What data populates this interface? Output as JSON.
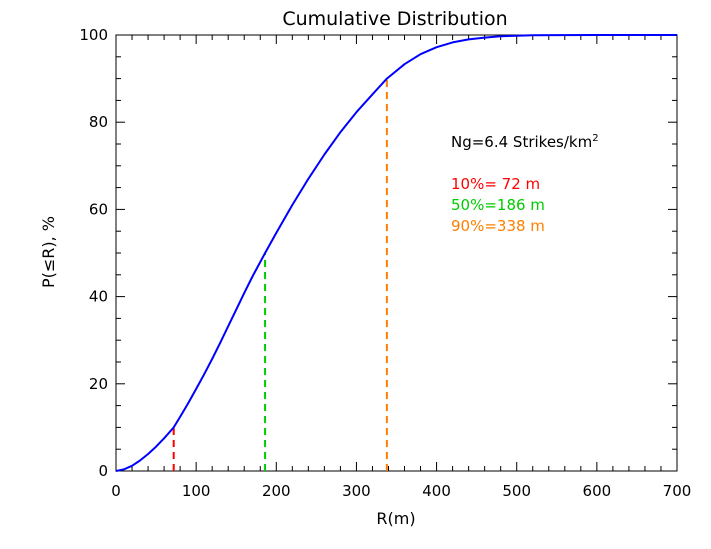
{
  "chart_data": {
    "type": "line",
    "title": "Cumulative Distribution",
    "xlabel": "R(m)",
    "ylabel": "P(≤R), %",
    "xlim": [
      0,
      700
    ],
    "ylim": [
      0,
      100
    ],
    "xticks": [
      0,
      100,
      200,
      300,
      400,
      500,
      600,
      700
    ],
    "yticks": [
      0,
      20,
      40,
      60,
      80,
      100
    ],
    "xtick_labels": [
      "0",
      "100",
      "200",
      "300",
      "400",
      "500",
      "600",
      "700"
    ],
    "ytick_labels": [
      "0",
      "20",
      "40",
      "60",
      "80",
      "100"
    ],
    "series": [
      {
        "color": "#0000ff",
        "x": [
          0,
          10,
          20,
          30,
          40,
          50,
          60,
          72,
          80,
          90,
          100,
          110,
          120,
          130,
          140,
          150,
          160,
          170,
          186,
          200,
          220,
          240,
          260,
          280,
          300,
          320,
          338,
          360,
          380,
          400,
          420,
          440,
          460,
          480,
          500,
          520,
          550,
          600,
          650,
          700
        ],
        "y": [
          0,
          0.4,
          1.2,
          2.4,
          3.9,
          5.6,
          7.5,
          10,
          12.4,
          15.5,
          18.8,
          22.2,
          25.7,
          29.4,
          33.2,
          37.0,
          40.8,
          44.5,
          50,
          54.6,
          61.0,
          67.0,
          72.6,
          77.7,
          82.3,
          86.4,
          90,
          93.3,
          95.6,
          97.2,
          98.3,
          99.0,
          99.4,
          99.7,
          99.85,
          99.93,
          99.98,
          100,
          100,
          100
        ]
      }
    ],
    "markers": [
      {
        "x": 72,
        "y": 10,
        "color": "#ff0000"
      },
      {
        "x": 186,
        "y": 50,
        "color": "#00cc00"
      },
      {
        "x": 338,
        "y": 90,
        "color": "#ff8000"
      }
    ],
    "annotations": {
      "ng_prefix": "Ng=6.4 Strikes/km",
      "ng_sup": "2",
      "p10": "10%= 72 m",
      "p50": "50%=186 m",
      "p90": "90%=338 m"
    },
    "colors": {
      "curve": "#0000ff",
      "p10": "#ff0000",
      "p50": "#00cc00",
      "p90": "#ff8000",
      "axes": "#000000"
    },
    "grid": false
  }
}
